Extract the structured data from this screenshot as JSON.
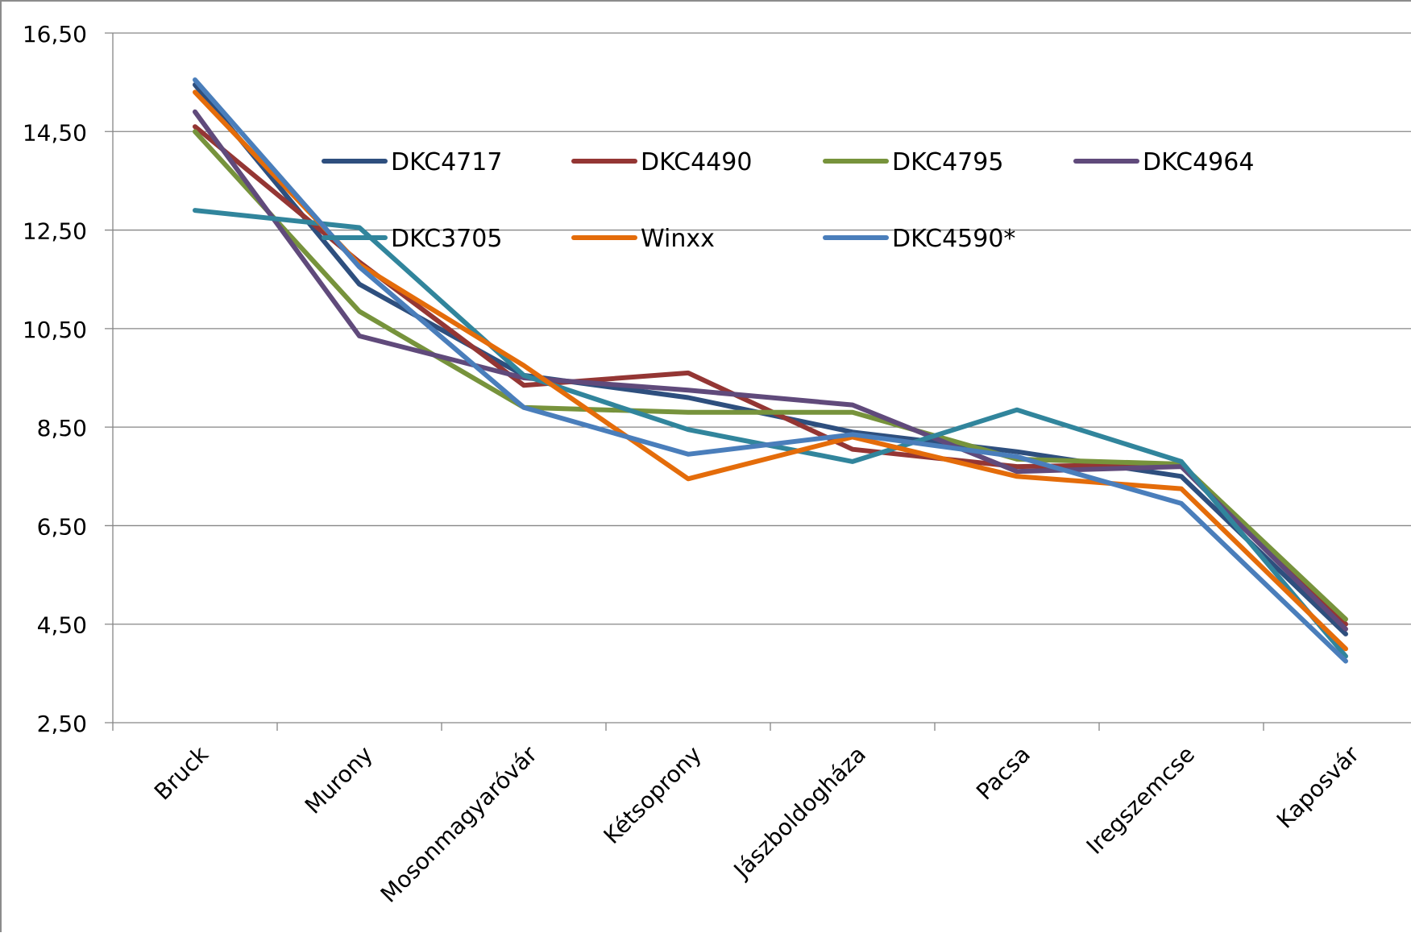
{
  "chart_data": {
    "type": "line",
    "title": "",
    "xlabel": "",
    "ylabel": "",
    "ylim": [
      2.5,
      16.5
    ],
    "yticks": [
      "2,50",
      "4,50",
      "6,50",
      "8,50",
      "10,50",
      "12,50",
      "14,50",
      "16,50"
    ],
    "grid": "horizontal",
    "legend_position": "inside-top",
    "categories": [
      "Bruck",
      "Murony",
      "Mosonmagyaróvár",
      "Kétsoprony",
      "Jászboldogháza",
      "Pacsa",
      "Iregszemcse",
      "Kaposvár"
    ],
    "series": [
      {
        "name": "DKC4717",
        "color": "#2e4f7e",
        "values": [
          15.45,
          11.4,
          9.55,
          9.1,
          8.4,
          8.0,
          7.5,
          4.3
        ]
      },
      {
        "name": "DKC4490",
        "color": "#943634",
        "values": [
          14.6,
          11.85,
          9.35,
          9.6,
          8.05,
          7.7,
          7.75,
          4.5
        ]
      },
      {
        "name": "DKC4795",
        "color": "#77933c",
        "values": [
          14.5,
          10.85,
          8.9,
          8.8,
          8.8,
          7.85,
          7.75,
          4.6
        ]
      },
      {
        "name": "DKC4964",
        "color": "#604a7b",
        "values": [
          14.9,
          10.35,
          9.5,
          9.25,
          8.95,
          7.6,
          7.7,
          4.4
        ]
      },
      {
        "name": "DKC3705",
        "color": "#31859c",
        "values": [
          12.9,
          12.55,
          9.55,
          8.45,
          7.8,
          8.85,
          7.8,
          3.85
        ]
      },
      {
        "name": "Winxx",
        "color": "#e46c0a",
        "values": [
          15.3,
          11.8,
          9.75,
          7.45,
          8.3,
          7.5,
          7.25,
          4.0
        ]
      },
      {
        "name": "DKC4590*",
        "color": "#4a7ebb",
        "values": [
          15.55,
          11.75,
          8.9,
          7.95,
          8.35,
          7.9,
          6.95,
          3.75
        ]
      }
    ]
  }
}
